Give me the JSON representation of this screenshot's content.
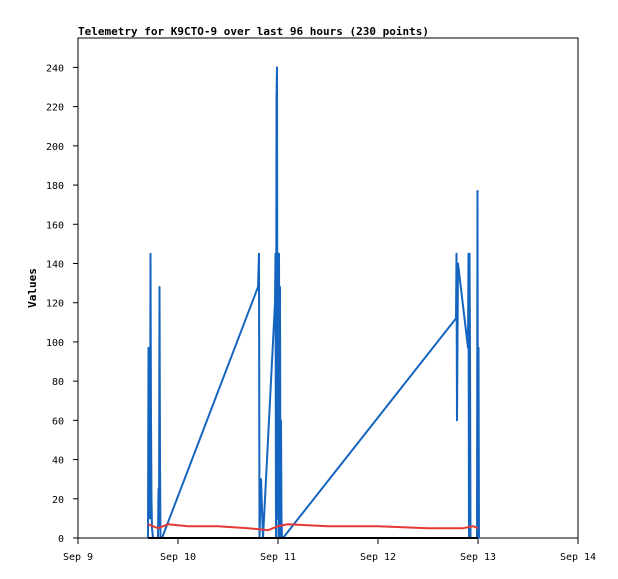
{
  "chart_data": {
    "type": "line",
    "title": "Telemetry for K9CTO-9 over last 96 hours (230 points)",
    "xlabel": "",
    "ylabel": "Values",
    "x_unit": "days (Sep)",
    "xlim": [
      9,
      14
    ],
    "ylim": [
      0,
      255
    ],
    "x_ticks": [
      {
        "value": 9,
        "label": "Sep 9"
      },
      {
        "value": 10,
        "label": "Sep 10"
      },
      {
        "value": 11,
        "label": "Sep 11"
      },
      {
        "value": 12,
        "label": "Sep 12"
      },
      {
        "value": 13,
        "label": "Sep 13"
      },
      {
        "value": 14,
        "label": "Sep 14"
      }
    ],
    "y_ticks": [
      0,
      20,
      40,
      60,
      80,
      100,
      120,
      140,
      160,
      180,
      200,
      220,
      240
    ],
    "grid": false,
    "legend": "none",
    "series": [
      {
        "color": "#1565c0",
        "x": [
          9.7,
          9.705,
          9.71,
          9.715,
          9.72,
          9.725,
          9.73,
          9.735,
          9.74,
          9.75,
          9.76,
          9.8,
          9.805,
          9.81,
          9.815,
          9.82,
          9.825,
          9.83,
          9.84,
          10.8,
          10.81,
          10.815,
          10.82,
          10.83,
          10.85,
          10.97,
          10.975,
          10.98,
          10.985,
          10.99,
          10.995,
          11.0,
          11.005,
          11.01,
          11.015,
          11.02,
          11.025,
          11.03,
          11.035,
          11.04,
          11.05,
          12.78,
          12.785,
          12.79,
          12.8,
          12.9,
          12.905,
          12.91,
          12.915,
          12.92,
          12.925,
          12.93,
          12.99,
          12.995,
          13.0,
          13.005,
          13.01
        ],
        "y": [
          0,
          97,
          20,
          80,
          10,
          145,
          60,
          20,
          5,
          0,
          0,
          0,
          25,
          5,
          128,
          40,
          0,
          0,
          0,
          128,
          145,
          0,
          10,
          30,
          0,
          120,
          145,
          0,
          225,
          240,
          10,
          145,
          0,
          145,
          60,
          128,
          0,
          60,
          10,
          0,
          0,
          112,
          145,
          60,
          140,
          97,
          145,
          0,
          145,
          97,
          0,
          0,
          0,
          177,
          0,
          97,
          0
        ]
      },
      {
        "color": "#e53935",
        "x": [
          9.7,
          9.8,
          9.9,
          10.1,
          10.4,
          10.7,
          10.9,
          11.0,
          11.1,
          11.5,
          12.0,
          12.5,
          12.85,
          12.95,
          13.0
        ],
        "y": [
          7,
          5,
          7,
          6,
          6,
          5,
          4,
          6,
          7,
          6,
          6,
          5,
          5,
          6,
          5
        ]
      },
      {
        "color": "#000000",
        "x": [
          9.7,
          13.0
        ],
        "y": [
          0,
          0
        ]
      }
    ]
  }
}
